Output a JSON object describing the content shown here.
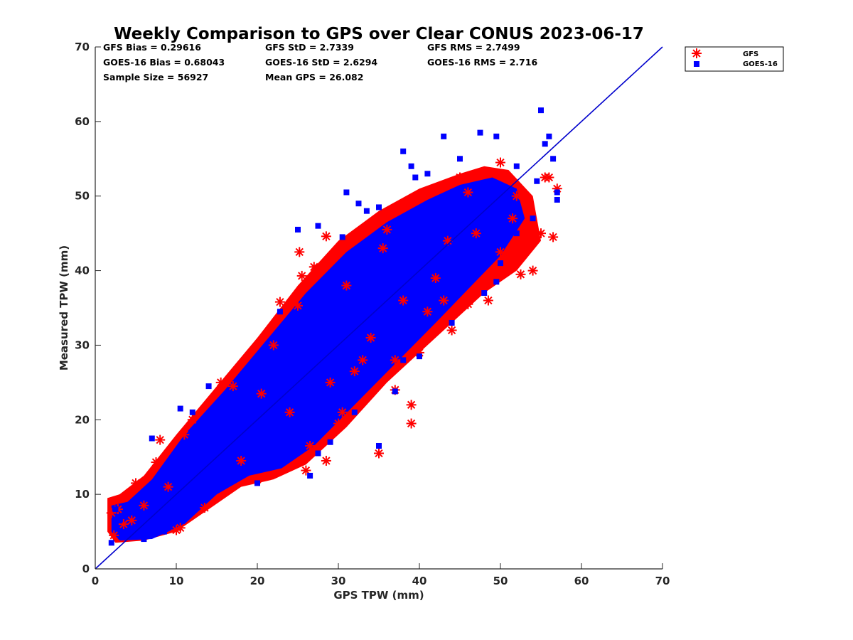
{
  "chart_data": {
    "type": "scatter",
    "title": "Weekly Comparison to GPS over Clear CONUS 2023-06-17",
    "xlabel": "GPS TPW (mm)",
    "ylabel": "Measured TPW (mm)",
    "xlim": [
      0,
      70
    ],
    "ylim": [
      0,
      70
    ],
    "xticks": [
      "0",
      "10",
      "20",
      "30",
      "40",
      "50",
      "60",
      "70"
    ],
    "yticks": [
      "0",
      "10",
      "20",
      "30",
      "40",
      "50",
      "60",
      "70"
    ],
    "grid": false,
    "legend_position": "top-right",
    "stats": [
      [
        "GFS Bias = 0.29616",
        "GFS StD = 2.7339",
        "GFS RMS = 2.7499"
      ],
      [
        "GOES-16 Bias = 0.68043",
        "GOES-16 StD = 2.6294",
        "GOES-16 RMS = 2.716"
      ],
      [
        "Sample Size = 56927",
        "Mean GPS = 26.082",
        ""
      ]
    ],
    "reference_line": {
      "x": [
        0,
        70
      ],
      "y": [
        0,
        70
      ],
      "color": "#0000cc"
    },
    "series": [
      {
        "name": "GFS",
        "marker": "asterisk",
        "color": "#ff0000",
        "points": [
          [
            2.0,
            7.5
          ],
          [
            2.3,
            4.5
          ],
          [
            2.8,
            8.0
          ],
          [
            3.5,
            6.0
          ],
          [
            5.0,
            11.5
          ],
          [
            7.5,
            14.3
          ],
          [
            8.0,
            17.3
          ],
          [
            10.0,
            5.2
          ],
          [
            10.5,
            5.5
          ],
          [
            11.0,
            18.0
          ],
          [
            13.5,
            8.2
          ],
          [
            15.5,
            25.0
          ],
          [
            17.0,
            24.5
          ],
          [
            20.0,
            12.0
          ],
          [
            22.8,
            35.8
          ],
          [
            25.0,
            35.3
          ],
          [
            25.2,
            42.5
          ],
          [
            25.5,
            39.3
          ],
          [
            27.0,
            40.5
          ],
          [
            28.5,
            44.6
          ],
          [
            28.5,
            14.5
          ],
          [
            26.0,
            13.2
          ],
          [
            26.5,
            16.5
          ],
          [
            30.0,
            19.5
          ],
          [
            30.5,
            21.0
          ],
          [
            31.0,
            38.0
          ],
          [
            32.0,
            26.5
          ],
          [
            33.0,
            28.0
          ],
          [
            35.0,
            15.5
          ],
          [
            35.0,
            47.0
          ],
          [
            37.0,
            24.0
          ],
          [
            37.0,
            28.0
          ],
          [
            39.0,
            22.0
          ],
          [
            39.0,
            19.5
          ],
          [
            40.0,
            29.0
          ],
          [
            41.0,
            34.5
          ],
          [
            43.0,
            36.0
          ],
          [
            44.0,
            32.0
          ],
          [
            46.0,
            35.5
          ],
          [
            46.0,
            50.5
          ],
          [
            48.0,
            38.0
          ],
          [
            48.5,
            36.0
          ],
          [
            49.0,
            39.5
          ],
          [
            50.0,
            42.5
          ],
          [
            51.5,
            47.0
          ],
          [
            52.5,
            39.5
          ],
          [
            53.0,
            45.0
          ],
          [
            54.0,
            40.0
          ],
          [
            55.0,
            45.0
          ],
          [
            55.5,
            52.5
          ],
          [
            56.0,
            52.5
          ],
          [
            56.5,
            44.5
          ],
          [
            57.0,
            51.0
          ],
          [
            50.0,
            54.5
          ],
          [
            45.0,
            52.5
          ],
          [
            43.5,
            44.0
          ],
          [
            35.5,
            43.0
          ],
          [
            36.0,
            45.5
          ],
          [
            22.0,
            30.0
          ],
          [
            20.5,
            23.5
          ],
          [
            12.0,
            20.0
          ],
          [
            6.0,
            8.5
          ],
          [
            4.5,
            6.5
          ],
          [
            9.0,
            11.0
          ],
          [
            18.0,
            14.5
          ],
          [
            24.0,
            21.0
          ],
          [
            29.0,
            25.0
          ],
          [
            34.0,
            31.0
          ],
          [
            38.0,
            36.0
          ],
          [
            42.0,
            39.0
          ],
          [
            47.0,
            45.0
          ],
          [
            52.0,
            50.0
          ]
        ]
      },
      {
        "name": "GOES-16",
        "marker": "square",
        "color": "#0000ff",
        "points": [
          [
            2.0,
            3.5
          ],
          [
            2.5,
            8.0
          ],
          [
            10.5,
            21.5
          ],
          [
            12.0,
            21.0
          ],
          [
            14.0,
            24.5
          ],
          [
            22.8,
            34.5
          ],
          [
            25.0,
            45.5
          ],
          [
            27.5,
            46.0
          ],
          [
            31.0,
            50.5
          ],
          [
            32.5,
            49.0
          ],
          [
            33.5,
            48.0
          ],
          [
            35.0,
            48.5
          ],
          [
            38.0,
            56.0
          ],
          [
            39.0,
            54.0
          ],
          [
            39.5,
            52.5
          ],
          [
            41.0,
            53.0
          ],
          [
            43.0,
            58.0
          ],
          [
            45.0,
            55.0
          ],
          [
            47.5,
            58.5
          ],
          [
            49.5,
            58.0
          ],
          [
            52.0,
            54.0
          ],
          [
            54.5,
            52.0
          ],
          [
            55.0,
            61.5
          ],
          [
            55.5,
            57.0
          ],
          [
            56.0,
            58.0
          ],
          [
            56.5,
            55.0
          ],
          [
            57.0,
            50.5
          ],
          [
            57.0,
            49.5
          ],
          [
            54.0,
            47.0
          ],
          [
            52.0,
            45.0
          ],
          [
            50.0,
            41.0
          ],
          [
            49.5,
            38.5
          ],
          [
            48.0,
            37.0
          ],
          [
            46.0,
            40.5
          ],
          [
            44.0,
            33.0
          ],
          [
            42.0,
            35.0
          ],
          [
            40.0,
            28.5
          ],
          [
            38.0,
            28.0
          ],
          [
            37.0,
            23.8
          ],
          [
            35.0,
            16.5
          ],
          [
            32.0,
            21.0
          ],
          [
            29.0,
            17.0
          ],
          [
            27.5,
            15.5
          ],
          [
            26.5,
            12.5
          ],
          [
            24.0,
            15.0
          ],
          [
            20.0,
            11.5
          ],
          [
            17.0,
            15.0
          ],
          [
            15.0,
            14.5
          ],
          [
            8.5,
            5.0
          ],
          [
            6.0,
            4.0
          ],
          [
            4.5,
            4.5
          ],
          [
            3.0,
            6.5
          ],
          [
            7.0,
            17.5
          ],
          [
            30.5,
            44.5
          ],
          [
            35.5,
            41.5
          ],
          [
            41.0,
            40.0
          ],
          [
            44.5,
            44.5
          ],
          [
            36.5,
            35.5
          ],
          [
            28.0,
            28.0
          ],
          [
            18.0,
            19.0
          ]
        ]
      }
    ]
  }
}
